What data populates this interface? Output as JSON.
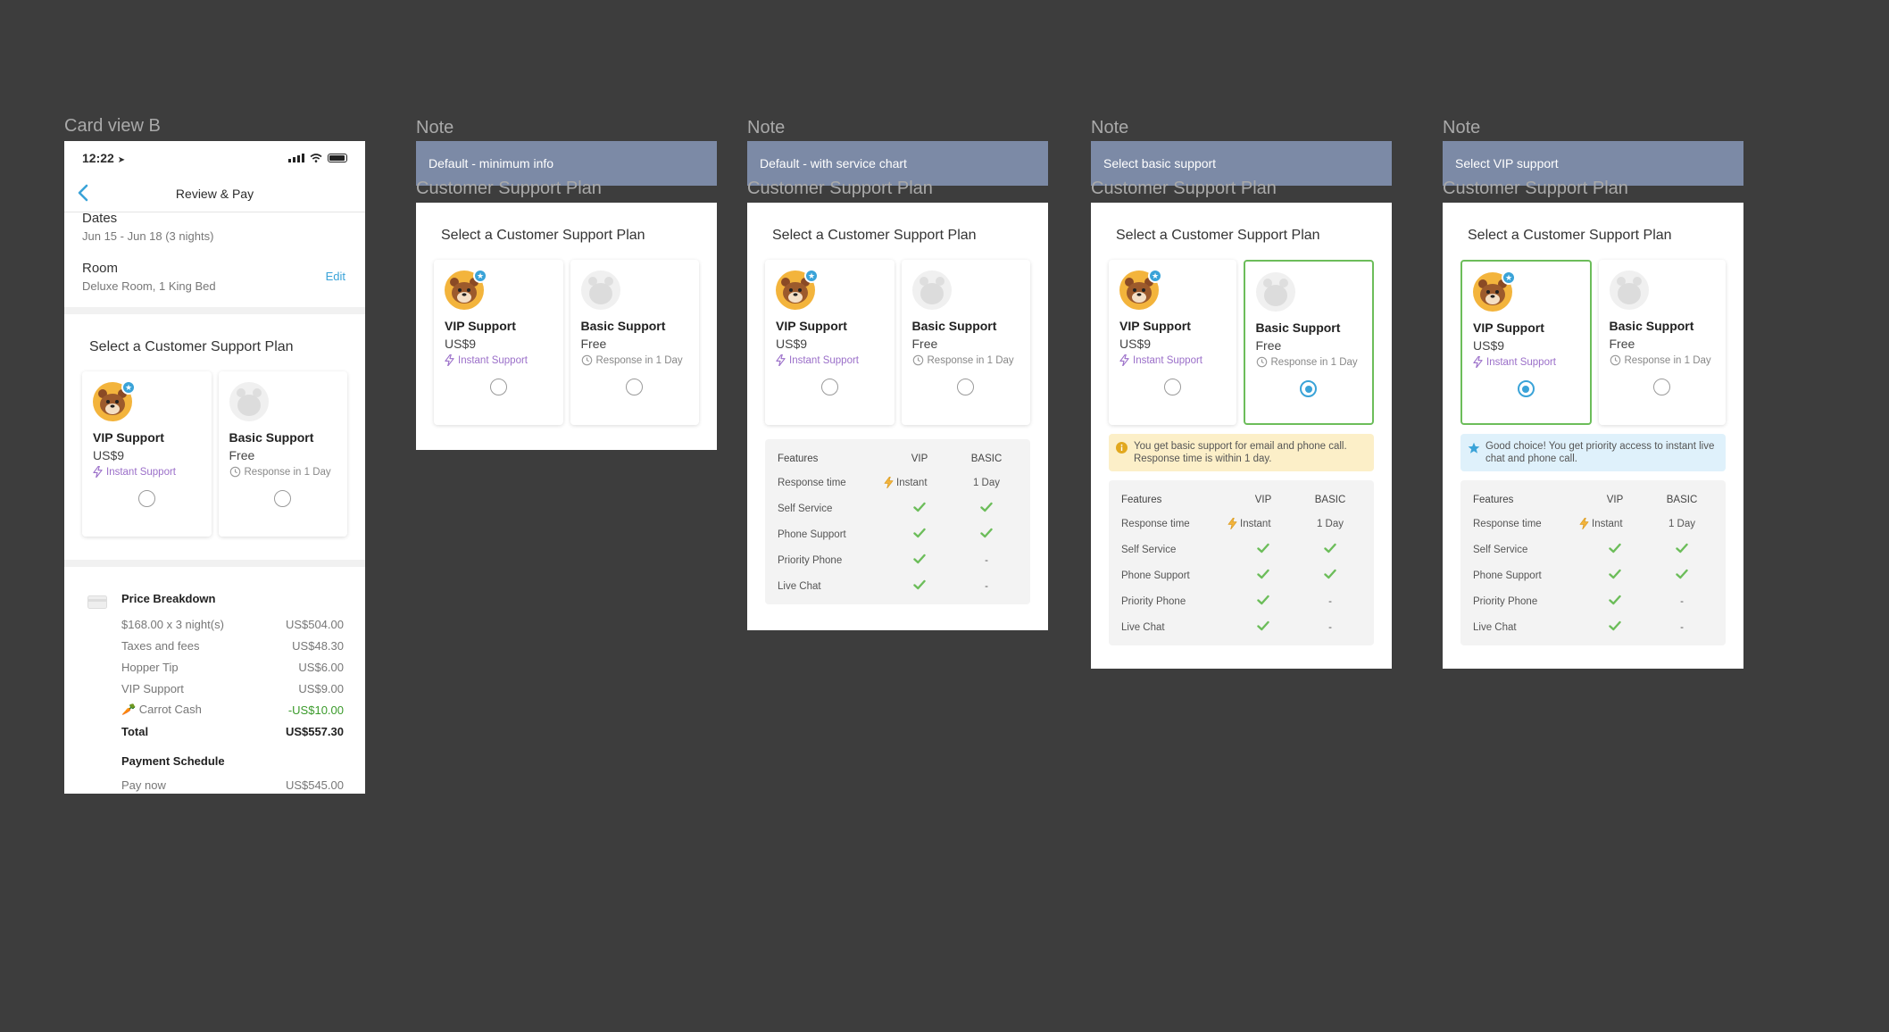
{
  "frames": [
    {
      "label": "Card view B"
    },
    {
      "label": "Note",
      "note": "Default - minimum info",
      "sub": "Customer Support Plan"
    },
    {
      "label": "Note",
      "note": "Default - with service chart",
      "sub": "Customer Support Plan"
    },
    {
      "label": "Note",
      "note": "Select basic support",
      "sub": "Customer Support Plan"
    },
    {
      "label": "Note",
      "note": "Select VIP support",
      "sub": "Customer Support Plan"
    }
  ],
  "phone": {
    "time": "12:22",
    "title": "Review & Pay",
    "dates_label": "Dates",
    "dates_value": "Jun 15 - Jun 18 (3 nights)",
    "room_label": "Room",
    "room_value": "Deluxe Room, 1 King Bed",
    "edit": "Edit",
    "price_title": "Price Breakdown",
    "price_rows": [
      {
        "k": "$168.00 x 3 night(s)",
        "v": "US$504.00"
      },
      {
        "k": "Taxes and fees",
        "v": "US$48.30"
      },
      {
        "k": "Hopper Tip",
        "v": "US$6.00"
      },
      {
        "k": "VIP Support",
        "v": "US$9.00"
      },
      {
        "k": "🥕 Carrot Cash",
        "v": "-US$10.00"
      },
      {
        "k": "Total",
        "v": "US$557.30"
      }
    ],
    "schedule_title": "Payment Schedule",
    "pay_now": "Pay now",
    "pay_now_value": "US$545.00"
  },
  "plan": {
    "title": "Select a Customer Support Plan",
    "vip": {
      "name": "VIP Support",
      "price": "US$9",
      "tag": "Instant Support"
    },
    "basic": {
      "name": "Basic Support",
      "price": "Free",
      "tag": "Response in 1 Day"
    }
  },
  "banners": {
    "basic": "You get basic support for email and phone call. Response time is within 1 day.",
    "vip": "Good choice! You get priority access to instant live chat and phone call."
  },
  "features": {
    "head": {
      "name": "Features",
      "vip": "VIP",
      "basic": "BASIC"
    },
    "response": {
      "name": "Response time",
      "vip": "Instant",
      "basic": "1 Day"
    },
    "rows": [
      {
        "name": "Self Service",
        "vip": true,
        "basic": true
      },
      {
        "name": "Phone Support",
        "vip": true,
        "basic": true
      },
      {
        "name": "Priority Phone",
        "vip": true,
        "basic": false
      },
      {
        "name": "Live Chat",
        "vip": true,
        "basic": false
      }
    ],
    "dash": "-"
  },
  "colors": {
    "accent": "#3aa3d8",
    "selected": "#6cbd5a",
    "vip_tag": "#9b6fc9",
    "note": "#7c8aa6"
  }
}
